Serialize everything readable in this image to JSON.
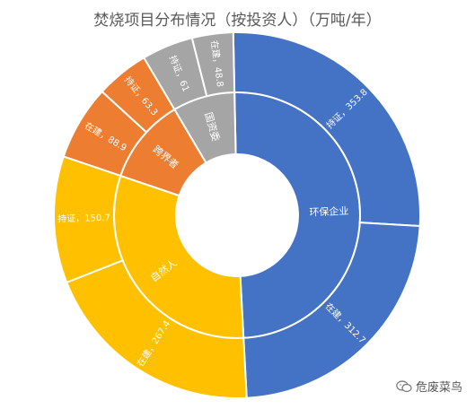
{
  "chart_data": {
    "type": "sunburst",
    "title": "焚烧项目分布情况（按投资人）（万吨/年）",
    "inner": [
      {
        "label": "环保企业",
        "value": 666.5,
        "color": "#4472C4"
      },
      {
        "label": "自然人",
        "value": 418.1,
        "color": "#FFC000"
      },
      {
        "label": "跨界者",
        "value": 152.2,
        "color": "#ED7D31"
      },
      {
        "label": "国资委",
        "value": 109.8,
        "color": "#A5A5A5"
      }
    ],
    "outer": [
      {
        "parent": "环保企业",
        "label": "持证，353.8",
        "value": 353.8,
        "color": "#4472C4"
      },
      {
        "parent": "环保企业",
        "label": "在建，312.7",
        "value": 312.7,
        "color": "#4472C4"
      },
      {
        "parent": "自然人",
        "label": "在建，267.4",
        "value": 267.4,
        "color": "#FFC000"
      },
      {
        "parent": "自然人",
        "label": "持证，150.7",
        "value": 150.7,
        "color": "#FFC000"
      },
      {
        "parent": "跨界者",
        "label": "在建，88.9",
        "value": 88.9,
        "color": "#ED7D31"
      },
      {
        "parent": "跨界者",
        "label": "持证，63.3",
        "value": 63.3,
        "color": "#ED7D31"
      },
      {
        "parent": "国资委",
        "label": "持证，61",
        "value": 61,
        "color": "#A5A5A5"
      },
      {
        "parent": "国资委",
        "label": "在建，48.8",
        "value": 48.8,
        "color": "#A5A5A5"
      }
    ]
  },
  "watermark": {
    "text": "危废菜鸟",
    "icon": "wechat-icon"
  }
}
